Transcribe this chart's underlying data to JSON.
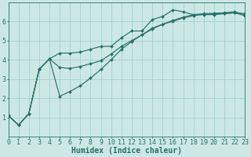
{
  "background_color": "#cce8e4",
  "grid_color": "#99cccc",
  "line_color": "#2a7068",
  "xlabel": "Humidex (Indice chaleur)",
  "xlabel_fontsize": 7,
  "tick_fontsize": 6,
  "ylim": [
    0,
    7
  ],
  "xlim": [
    0,
    23
  ],
  "yticks": [
    1,
    2,
    3,
    4,
    5,
    6
  ],
  "xticks": [
    0,
    1,
    2,
    3,
    4,
    5,
    6,
    7,
    8,
    9,
    10,
    11,
    12,
    13,
    14,
    15,
    16,
    17,
    18,
    19,
    20,
    21,
    22,
    23
  ],
  "x": [
    0,
    1,
    2,
    3,
    4,
    5,
    6,
    7,
    8,
    9,
    10,
    11,
    12,
    13,
    14,
    15,
    16,
    17,
    18,
    19,
    20,
    21,
    22,
    23
  ],
  "line1": [
    1.1,
    0.6,
    1.2,
    3.5,
    4.05,
    4.35,
    4.35,
    4.4,
    4.55,
    4.7,
    4.7,
    5.15,
    5.5,
    5.5,
    6.1,
    6.25,
    6.6,
    6.5,
    6.35,
    6.35,
    6.35,
    6.4,
    6.45,
    6.4
  ],
  "line2": [
    1.1,
    0.6,
    1.2,
    3.5,
    4.05,
    3.6,
    3.55,
    3.65,
    3.8,
    3.95,
    4.3,
    4.7,
    5.0,
    5.3,
    5.6,
    5.85,
    6.05,
    6.22,
    6.35,
    6.4,
    6.42,
    6.45,
    6.5,
    6.35
  ],
  "line3": [
    1.1,
    0.6,
    1.2,
    3.5,
    4.05,
    2.1,
    2.35,
    2.65,
    3.05,
    3.5,
    4.0,
    4.55,
    4.95,
    5.3,
    5.65,
    5.85,
    6.0,
    6.18,
    6.3,
    6.37,
    6.4,
    6.42,
    6.44,
    6.3
  ]
}
